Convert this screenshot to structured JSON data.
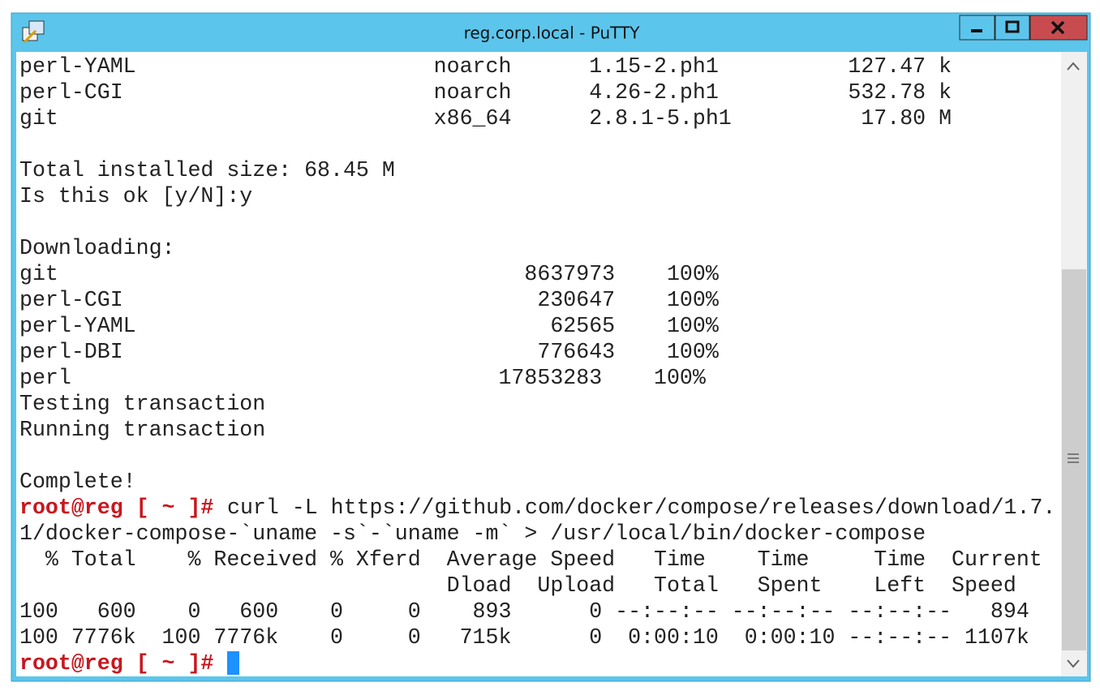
{
  "window": {
    "title": "reg.corp.local - PuTTY"
  },
  "terminal": {
    "blocks": [
      [
        "perl-YAML                       noarch      1.15-2.ph1          127.47 k",
        "perl-CGI                        noarch      4.26-2.ph1          532.78 k",
        "git                             x86_64      2.8.1-5.ph1          17.80 M"
      ],
      [
        "Total installed size: 68.45 M",
        "Is this ok [y/N]:y"
      ],
      [
        "Downloading:",
        "git                                    8637973    100%",
        "perl-CGI                                230647    100%",
        "perl-YAML                                62565    100%",
        "perl-DBI                                776643    100%",
        "perl                                 17853283    100%",
        "Testing transaction",
        "Running transaction"
      ],
      [
        "Complete!",
        {
          "prompt": "root@reg [ ~ ]#",
          "command": "curl -L https://github.com/docker/compose/releases/download/1.7."
        },
        "1/docker-compose-`uname -s`-`uname -m` > /usr/local/bin/docker-compose",
        "  % Total    % Received % Xferd  Average Speed   Time    Time     Time  Current",
        "                                 Dload  Upload   Total   Spent    Left  Speed",
        "100   600    0   600    0     0    893      0 --:--:-- --:--:-- --:--:--   894",
        "100 7776k  100 7776k    0     0   715k      0  0:00:10  0:00:10 --:--:-- 1107k",
        {
          "prompt": "root@reg [ ~ ]#"
        }
      ]
    ]
  }
}
